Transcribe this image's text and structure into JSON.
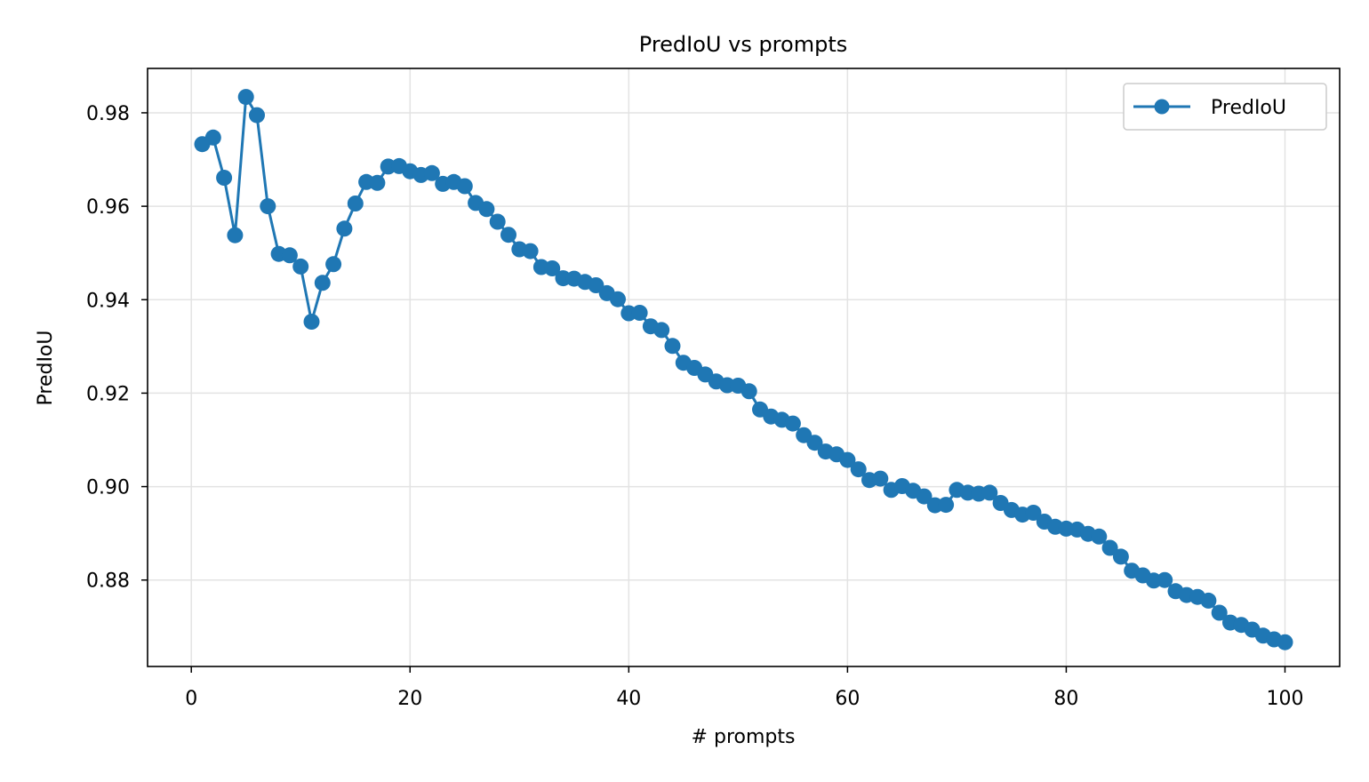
{
  "chart_data": {
    "type": "line",
    "title": "PredIoU vs prompts",
    "xlabel": "# prompts",
    "ylabel": "PredIoU",
    "xlim": [
      -4,
      105
    ],
    "ylim": [
      0.8615,
      0.9895
    ],
    "xticks": [
      0,
      20,
      40,
      60,
      80,
      100
    ],
    "xtick_labels": [
      "0",
      "20",
      "40",
      "60",
      "80",
      "100"
    ],
    "yticks": [
      0.88,
      0.9,
      0.92,
      0.94,
      0.96,
      0.98
    ],
    "ytick_labels": [
      "0.88",
      "0.90",
      "0.92",
      "0.94",
      "0.96",
      "0.98"
    ],
    "grid": true,
    "legend_position": "top-right",
    "line_color": "#1f77b4",
    "series": [
      {
        "name": "PredIoU",
        "marker": "circle",
        "x": [
          1,
          2,
          3,
          4,
          5,
          6,
          7,
          8,
          9,
          10,
          11,
          12,
          13,
          14,
          15,
          16,
          17,
          18,
          19,
          20,
          21,
          22,
          23,
          24,
          25,
          26,
          27,
          28,
          29,
          30,
          31,
          32,
          33,
          34,
          35,
          36,
          37,
          38,
          39,
          40,
          41,
          42,
          43,
          44,
          45,
          46,
          47,
          48,
          49,
          50,
          51,
          52,
          53,
          54,
          55,
          56,
          57,
          58,
          59,
          60,
          61,
          62,
          63,
          64,
          65,
          66,
          67,
          68,
          69,
          70,
          71,
          72,
          73,
          74,
          75,
          76,
          77,
          78,
          79,
          80,
          81,
          82,
          83,
          84,
          85,
          86,
          87,
          88,
          89,
          90,
          91,
          92,
          93,
          94,
          95,
          96,
          97,
          98,
          99,
          100
        ],
        "values": [
          0.9733,
          0.9747,
          0.9661,
          0.9538,
          0.9834,
          0.9795,
          0.96,
          0.9498,
          0.9495,
          0.9471,
          0.9353,
          0.9436,
          0.9476,
          0.9552,
          0.9606,
          0.9652,
          0.965,
          0.9685,
          0.9686,
          0.9675,
          0.9667,
          0.9671,
          0.9648,
          0.9652,
          0.9643,
          0.9607,
          0.9594,
          0.9567,
          0.9539,
          0.9508,
          0.9504,
          0.947,
          0.9467,
          0.9446,
          0.9445,
          0.9438,
          0.9431,
          0.9414,
          0.9401,
          0.9371,
          0.9372,
          0.9343,
          0.9335,
          0.9301,
          0.9265,
          0.9254,
          0.924,
          0.9225,
          0.9217,
          0.9216,
          0.9204,
          0.9165,
          0.915,
          0.9143,
          0.9135,
          0.911,
          0.9094,
          0.9075,
          0.9069,
          0.9057,
          0.9037,
          0.9014,
          0.9017,
          0.8993,
          0.9001,
          0.8991,
          0.8979,
          0.896,
          0.8961,
          0.8993,
          0.8987,
          0.8985,
          0.8987,
          0.8965,
          0.895,
          0.894,
          0.8944,
          0.8925,
          0.8914,
          0.891,
          0.8908,
          0.8899,
          0.8893,
          0.8869,
          0.885,
          0.882,
          0.881,
          0.8799,
          0.88,
          0.8776,
          0.8768,
          0.8764,
          0.8756,
          0.873,
          0.8709,
          0.8704,
          0.8694,
          0.8681,
          0.8673,
          0.8667
        ]
      }
    ]
  }
}
